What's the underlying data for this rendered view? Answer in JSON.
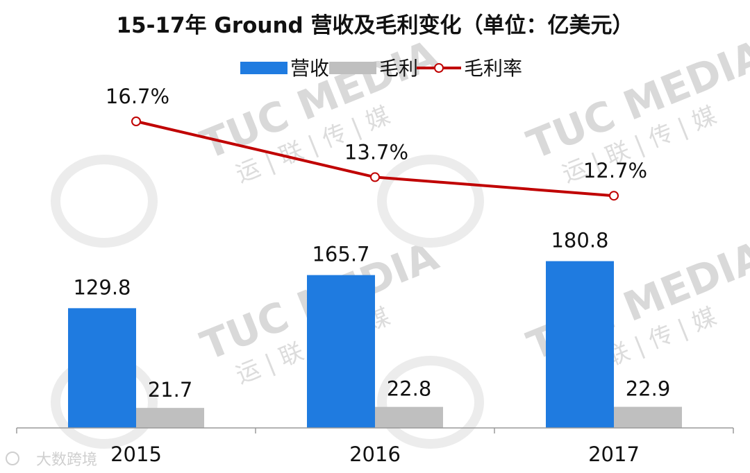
{
  "chart_data": {
    "type": "bar",
    "title": "15-17年  Ground  营收及毛利变化（单位：亿美元）",
    "categories": [
      "2015",
      "2016",
      "2017"
    ],
    "series": [
      {
        "name": "营收",
        "type": "bar",
        "values": [
          129.8,
          165.7,
          180.8
        ],
        "labels": [
          "129.8",
          "165.7",
          "180.8"
        ],
        "color": "#1F7BE0"
      },
      {
        "name": "毛利",
        "type": "bar",
        "values": [
          21.7,
          22.8,
          22.9
        ],
        "labels": [
          "21.7",
          "22.8",
          "22.9"
        ],
        "color": "#BFBFBF"
      },
      {
        "name": "毛利率",
        "type": "line",
        "values": [
          16.7,
          13.7,
          12.7
        ],
        "labels": [
          "16.7%",
          "13.7%",
          "12.7%"
        ],
        "color": "#C00000",
        "unit": "%"
      }
    ],
    "legend_position": "top",
    "grid": false
  },
  "watermark": {
    "brand": "TUC MEDIA",
    "brand_cn": "运 | 联 | 传 | 媒",
    "footer": "大数跨境"
  }
}
